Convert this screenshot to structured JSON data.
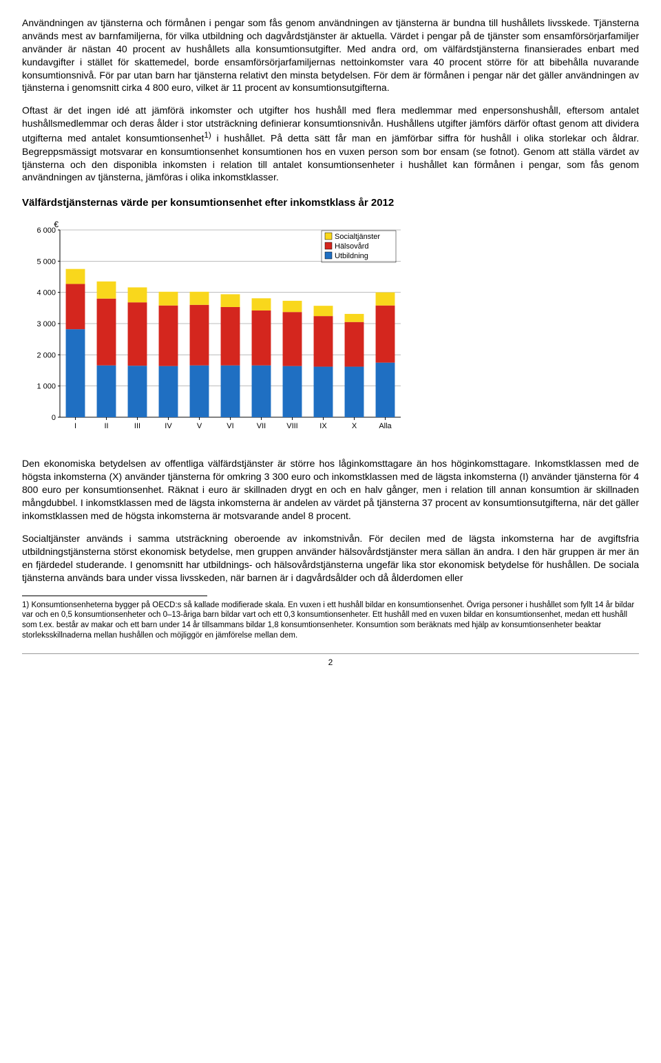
{
  "paragraphs": {
    "p1": "Användningen av tjänsterna och förmånen i pengar som fås genom användningen av tjänsterna är bundna till hushållets livsskede. Tjänsterna används mest av barnfamiljerna, för vilka utbildning och dagvårdstjänster är aktuella. Värdet i pengar på de tjänster som ensamförsörjarfamiljer använder är nästan 40 procent av hushållets alla konsumtionsutgifter. Med andra ord, om välfärdstjänsterna finansierades enbart med kundavgifter i stället för skattemedel, borde ensamförsörjarfamiljernas nettoinkomster vara 40 procent större för att bibehålla nuvarande konsumtionsnivå. För par utan barn har tjänsterna relativt den minsta betydelsen. För dem är förmånen i pengar när det gäller användningen av tjänsterna i genomsnitt cirka 4 800 euro, vilket är 11 procent av konsumtionsutgifterna.",
    "p2_a": "Oftast är det ingen idé att jämförä inkomster och utgifter hos hushåll med flera medlemmar med enpersonshushåll, eftersom antalet hushållsmedlemmar och deras ålder i stor utsträckning definierar konsumtionsnivån. Hushållens utgifter jämförs därför oftast genom att dividera utgifterna med antalet konsumtionsenhet",
    "p2_sup": "1)",
    "p2_b": " i hushållet. På detta sätt får man en jämförbar siffra för hushåll i olika storlekar och åldrar. Begreppsmässigt motsvarar en konsumtionsenhet konsumtionen hos en vuxen person som bor ensam (se fotnot). Genom att ställa värdet av tjänsterna och den disponibla inkomsten i relation till antalet konsumtionsenheter i hushållet kan förmånen i pengar, som fås genom användningen av tjänsterna, jämföras i olika inkomstklasser.",
    "p3": "Den ekonomiska betydelsen av offentliga välfärdstjänster är större hos låginkomsttagare än hos höginkomsttagare. Inkomstklassen med de högsta inkomsterna (X) använder tjänsterna för omkring 3 300 euro och inkomstklassen med de lägsta inkomsterna (I) använder tjänsterna för 4 800 euro per konsumtionsenhet. Räknat i euro är skillnaden drygt en och en halv gånger, men i relation till annan konsumtion är skillnaden mångdubbel. I inkomstklassen med de lägsta inkomsterna är andelen av värdet på tjänsterna 37 procent av konsumtionsutgifterna, när det gäller inkomstklassen med de högsta inkomsterna är motsvarande andel 8 procent.",
    "p4": "Socialtjänster används i samma utsträckning oberoende av inkomstnivån. För decilen med de lägsta inkomsterna har de avgiftsfria utbildningstjänsterna störst ekonomisk betydelse, men gruppen använder hälsovårdstjänster mera sällan än andra. I den här gruppen är mer än en fjärdedel studerande. I genomsnitt har utbildnings- och hälsovårdstjänsterna ungefär lika stor ekonomisk betydelse för hushållen. De sociala tjänsterna används bara under vissa livsskeden, när barnen är i dagvårdsålder och då ålderdomen eller"
  },
  "chart_title": "Välfärdstjänsternas värde per konsumtionsenhet efter inkomstklass år 2012",
  "chart": {
    "type": "stacked-bar",
    "y_label": "€",
    "y_max": 6000,
    "y_step": 1000,
    "categories": [
      "I",
      "II",
      "III",
      "IV",
      "V",
      "VI",
      "VII",
      "VIII",
      "IX",
      "X",
      "Alla"
    ],
    "series": [
      {
        "name": "Utbildning",
        "color": "#1f6fc2"
      },
      {
        "name": "Hälsovård",
        "color": "#d4261e"
      },
      {
        "name": "Socialtjänster",
        "color": "#f9d71c"
      }
    ],
    "data": {
      "utbildning": [
        2820,
        1660,
        1650,
        1640,
        1660,
        1660,
        1660,
        1640,
        1620,
        1620,
        1750
      ],
      "halsovard": [
        1450,
        2140,
        2030,
        1940,
        1940,
        1870,
        1760,
        1730,
        1620,
        1430,
        1830
      ],
      "socialtjanster": [
        480,
        550,
        480,
        440,
        420,
        410,
        390,
        360,
        330,
        260,
        420
      ]
    },
    "legend": [
      "Socialtjänster",
      "Hälsovård",
      "Utbildning"
    ],
    "background": "#ffffff",
    "grid_color": "#7a7a7a",
    "axis_color": "#000000",
    "bar_width_ratio": 0.62
  },
  "footnote_label": "1)",
  "footnote_text": "Konsumtionsenheterna bygger på OECD:s så kallade modifierade skala. En vuxen i ett hushåll bildar en konsumtionsenhet. Övriga personer i hushållet som fyllt 14 år bildar var och en 0,5 konsumtionsenheter och 0–13-åriga barn bildar vart och ett 0,3 konsumtionsenheter. Ett hushåll med en vuxen bildar en konsumtionsenhet, medan ett hushåll som t.ex. består av makar och ett barn under 14 år tillsammans bildar 1,8 konsumtionsenheter. Konsumtion som beräknats med hjälp av konsumtionsenheter beaktar storleksskillnaderna mellan hushållen och möjliggör en jämförelse mellan dem.",
  "page_number": "2"
}
